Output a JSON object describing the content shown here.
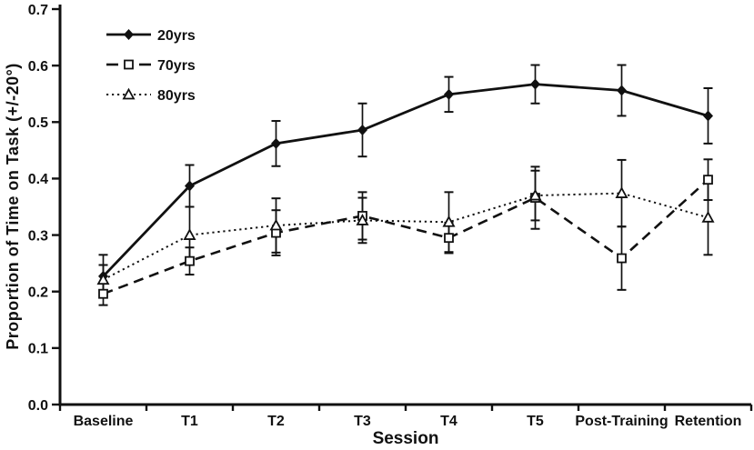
{
  "figure": {
    "background": "#ffffff",
    "ink": "#111111"
  },
  "chart_data": {
    "type": "line",
    "title": "",
    "xlabel": "Session",
    "ylabel": "Proportion of Time on Task (+/-20°)",
    "categories": [
      "Baseline",
      "T1",
      "T2",
      "T3",
      "T4",
      "T5",
      "Post-Training",
      "Retention"
    ],
    "yticks": [
      "0.0",
      "0.1",
      "0.2",
      "0.3",
      "0.4",
      "0.5",
      "0.6",
      "0.7"
    ],
    "ytick_values": [
      0.0,
      0.1,
      0.2,
      0.3,
      0.4,
      0.5,
      0.6,
      0.7
    ],
    "ylim": [
      0.0,
      0.7
    ],
    "grid": false,
    "legend_position": "top-left",
    "error_bar_type": "symmetric",
    "series": [
      {
        "name": "20yrs",
        "line_style": "solid",
        "marker": "filled-diamond",
        "color": "#111111",
        "values": [
          0.227,
          0.387,
          0.462,
          0.486,
          0.549,
          0.567,
          0.556,
          0.511
        ],
        "error_bars": [
          0.038,
          0.037,
          0.04,
          0.047,
          0.031,
          0.034,
          0.045,
          0.049
        ]
      },
      {
        "name": "70yrs",
        "line_style": "dashed",
        "marker": "open-square",
        "color": "#111111",
        "values": [
          0.196,
          0.254,
          0.304,
          0.334,
          0.295,
          0.366,
          0.259,
          0.398
        ],
        "error_bars": [
          0.02,
          0.024,
          0.04,
          0.042,
          0.027,
          0.055,
          0.056,
          0.036
        ]
      },
      {
        "name": "80yrs",
        "line_style": "dotted",
        "marker": "open-triangle",
        "color": "#111111",
        "values": [
          0.221,
          0.3,
          0.317,
          0.326,
          0.323,
          0.37,
          0.374,
          0.331
        ],
        "error_bars": [
          0.026,
          0.05,
          0.048,
          0.04,
          0.053,
          0.044,
          0.059,
          0.066
        ]
      }
    ]
  }
}
